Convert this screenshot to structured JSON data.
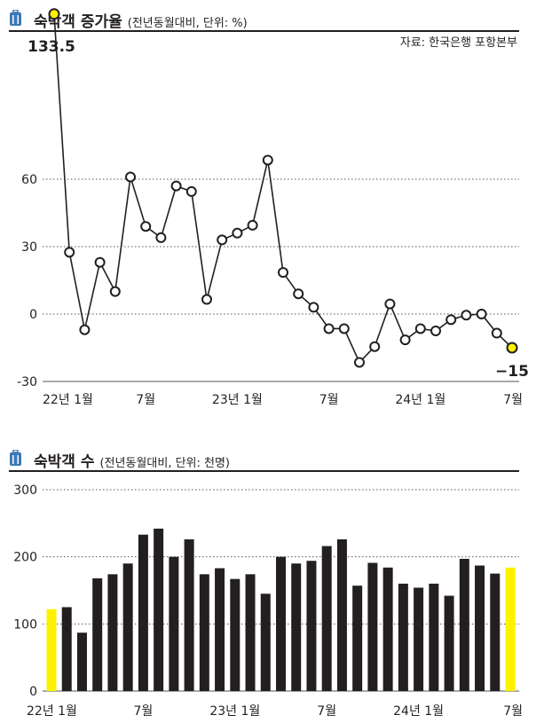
{
  "colors": {
    "ink": "#231f20",
    "highlight": "#fff200",
    "grid": "#555555"
  },
  "icons": [
    "suitcase-icon",
    "suitcase-icon"
  ],
  "line_panel": {
    "title": "숙박객 증가율",
    "subtitle": "(전년동월대비, 단위: %)",
    "source": "자료: 한국은행 포항본부",
    "first_label": "133.5",
    "last_label": "−15"
  },
  "bar_panel": {
    "title": "숙박객 수",
    "subtitle": "(전년동월대비, 단위: 천명)"
  },
  "chart_data": [
    {
      "type": "line",
      "title": "숙박객 증가율",
      "ylim": [
        -30,
        140
      ],
      "yticks": [
        "60",
        "30",
        "0",
        "-30"
      ],
      "ytick_values": [
        60,
        30,
        0,
        -30
      ],
      "grid": true,
      "xtick_labels": [
        "22년 1월",
        "7월",
        "23년 1월",
        "7월",
        "24년 1월",
        "7월"
      ],
      "xtick_index": [
        0,
        6,
        12,
        18,
        24,
        30
      ],
      "x": [
        "22.01",
        "22.02",
        "22.03",
        "22.04",
        "22.05",
        "22.06",
        "22.07",
        "22.08",
        "22.09",
        "22.10",
        "22.11",
        "22.12",
        "23.01",
        "23.02",
        "23.03",
        "23.04",
        "23.05",
        "23.06",
        "23.07",
        "23.08",
        "23.09",
        "23.10",
        "23.11",
        "23.12",
        "24.01",
        "24.02",
        "24.03",
        "24.04",
        "24.05",
        "24.06",
        "24.07"
      ],
      "values": [
        133.5,
        27.5,
        -7,
        23,
        10,
        61,
        39,
        34,
        57,
        54.5,
        6.5,
        33,
        36,
        39.5,
        68.5,
        18.5,
        9,
        3,
        -6.5,
        -6.5,
        -21.5,
        -14.5,
        4.5,
        -11.5,
        -6.5,
        -7.5,
        -2.5,
        -0.5,
        0,
        -8.5,
        -15
      ],
      "highlight_points": [
        0,
        30
      ]
    },
    {
      "type": "bar",
      "title": "숙박객 수",
      "ylim": [
        0,
        300
      ],
      "yticks": [
        "300",
        "200",
        "100",
        "0"
      ],
      "ytick_values": [
        300,
        200,
        100,
        0
      ],
      "grid": true,
      "xtick_labels": [
        "22년 1월",
        "7월",
        "23년 1월",
        "7월",
        "24년 1월",
        "7월"
      ],
      "xtick_index": [
        0,
        6,
        12,
        18,
        24,
        30
      ],
      "categories": [
        "22.01",
        "22.02",
        "22.03",
        "22.04",
        "22.05",
        "22.06",
        "22.07",
        "22.08",
        "22.09",
        "22.10",
        "22.11",
        "22.12",
        "23.01",
        "23.02",
        "23.03",
        "23.04",
        "23.05",
        "23.06",
        "23.07",
        "23.08",
        "23.09",
        "23.10",
        "23.11",
        "23.12",
        "24.01",
        "24.02",
        "24.03",
        "24.04",
        "24.05",
        "24.06",
        "24.07"
      ],
      "values": [
        122,
        125,
        87,
        168,
        174,
        190,
        233,
        242,
        200,
        226,
        174,
        183,
        167,
        174,
        145,
        200,
        190,
        194,
        216,
        226,
        157,
        191,
        184,
        160,
        154,
        160,
        142,
        197,
        187,
        175,
        184
      ],
      "highlight_bars": [
        0,
        30
      ]
    }
  ]
}
